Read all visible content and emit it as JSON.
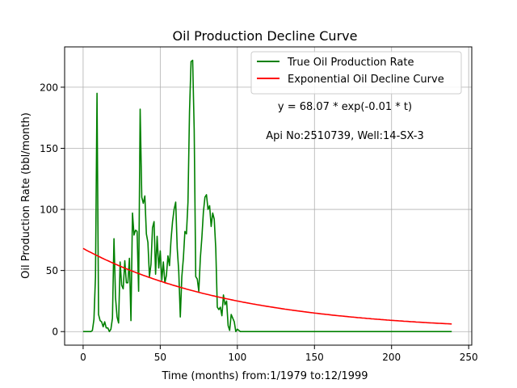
{
  "chart_data": {
    "type": "line",
    "title": "Oil Production Decline Curve",
    "xlabel": "Time (months) from:1/1979 to:12/1999",
    "ylabel": "Oil Production Rate (bbl/month)",
    "xlim": [
      -12,
      252
    ],
    "ylim": [
      -11.1,
      233
    ],
    "grid": true,
    "legend_position": "top-right",
    "xticks": [
      0,
      50,
      100,
      150,
      200,
      250
    ],
    "yticks": [
      0,
      50,
      100,
      150,
      200
    ],
    "x_tick_labels": [
      "0",
      "50",
      "100",
      "150",
      "200",
      "250"
    ],
    "y_tick_labels": [
      "0",
      "50",
      "100",
      "150",
      "200"
    ],
    "annotations": [
      "y = 68.07 * exp(-0.01 * t)",
      "Api No:2510739, Well:14-SX-3"
    ],
    "series": [
      {
        "name": "True Oil Production Rate",
        "color": "#008000",
        "x": [
          0,
          1,
          2,
          3,
          4,
          5,
          6,
          7,
          8,
          9,
          10,
          11,
          12,
          13,
          14,
          15,
          16,
          17,
          18,
          19,
          20,
          21,
          22,
          23,
          24,
          25,
          26,
          27,
          28,
          29,
          30,
          31,
          32,
          33,
          34,
          35,
          36,
          37,
          38,
          39,
          40,
          41,
          42,
          43,
          44,
          45,
          46,
          47,
          48,
          49,
          50,
          51,
          52,
          53,
          54,
          55,
          56,
          57,
          58,
          59,
          60,
          61,
          62,
          63,
          64,
          65,
          66,
          67,
          68,
          69,
          70,
          71,
          72,
          73,
          74,
          75,
          76,
          77,
          78,
          79,
          80,
          81,
          82,
          83,
          84,
          85,
          86,
          87,
          88,
          89,
          90,
          91,
          92,
          93,
          94,
          95,
          96,
          97,
          98,
          99,
          100,
          101,
          102,
          103,
          104,
          105,
          106,
          107,
          108,
          110,
          120,
          140,
          160,
          180,
          200,
          220,
          239
        ],
        "values": [
          0,
          0,
          0,
          0,
          0,
          0,
          1,
          10,
          45,
          195,
          14,
          9,
          8,
          4,
          8,
          3,
          3,
          0,
          2,
          11,
          76,
          28,
          12,
          7,
          57,
          38,
          35,
          58,
          40,
          40,
          60,
          9,
          97,
          79,
          83,
          82,
          33,
          182,
          110,
          105,
          111,
          80,
          73,
          45,
          55,
          85,
          90,
          47,
          78,
          52,
          66,
          42,
          57,
          40,
          46,
          62,
          54,
          75,
          90,
          100,
          106,
          68,
          49,
          12,
          45,
          60,
          82,
          80,
          106,
          180,
          221,
          222,
          165,
          45,
          43,
          33,
          60,
          77,
          98,
          110,
          112,
          100,
          103,
          86,
          97,
          92,
          68,
          20,
          18,
          20,
          13,
          30,
          22,
          25,
          5,
          1,
          14,
          11,
          8,
          0,
          2,
          1,
          0,
          0,
          0,
          0,
          0,
          0,
          0,
          0,
          0,
          0,
          0,
          0,
          0,
          0,
          0
        ]
      },
      {
        "name": "Exponential Oil Decline Curve",
        "color": "#ff0000",
        "model": {
          "a": 68.07,
          "b": -0.01,
          "t_start": 0,
          "t_end": 239
        }
      }
    ]
  }
}
